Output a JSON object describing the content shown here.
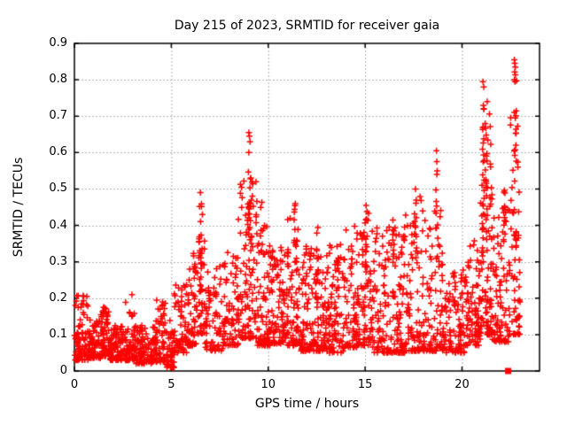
{
  "window": {
    "background": "#ffffff"
  },
  "chart_data": {
    "type": "scatter",
    "title": "Day 215 of 2023, SRMTID for receiver gaia",
    "xlabel": "GPS time / hours",
    "ylabel": "SRMTID / TECUs",
    "xlim": [
      0,
      24
    ],
    "ylim": [
      0,
      0.9
    ],
    "xticks": [
      0,
      5,
      10,
      15,
      20
    ],
    "xtick_labels": [
      "0",
      "5",
      "10",
      "15",
      "20"
    ],
    "yticks": [
      0,
      0.1,
      0.2,
      0.3,
      0.4,
      0.5,
      0.6,
      0.7,
      0.8,
      0.9
    ],
    "ytick_labels": [
      "0",
      "0.1",
      "0.2",
      "0.3",
      "0.4",
      "0.5",
      "0.6",
      "0.7",
      "0.8",
      "0.9"
    ],
    "grid": true,
    "grid_style": "dashed",
    "legend": "none",
    "marker": {
      "shape": "plus",
      "color": "#ff0000",
      "size": 7
    },
    "colors": {
      "marker": "#ff0000",
      "grid": "#b0b0b0",
      "border": "#000000",
      "text": "#000000"
    },
    "seed": 20230215,
    "band_format": [
      "x0_hours",
      "x1_hours",
      "y_min",
      "y_max",
      "n_points",
      "bias_toward_min"
    ],
    "bands": [
      [
        0.0,
        0.7,
        0.03,
        0.21,
        85,
        2.0
      ],
      [
        0.7,
        1.35,
        0.035,
        0.14,
        75,
        1.7
      ],
      [
        1.35,
        1.85,
        0.04,
        0.175,
        65,
        1.9
      ],
      [
        1.85,
        2.6,
        0.03,
        0.125,
        85,
        1.7
      ],
      [
        2.6,
        3.15,
        0.03,
        0.19,
        65,
        2.4
      ],
      [
        3.15,
        4.2,
        0.02,
        0.125,
        100,
        1.7
      ],
      [
        4.2,
        4.75,
        0.025,
        0.195,
        55,
        2.0
      ],
      [
        4.75,
        5.15,
        0.01,
        0.16,
        45,
        1.9
      ],
      [
        5.15,
        5.8,
        0.05,
        0.24,
        55,
        1.7
      ],
      [
        5.8,
        6.35,
        0.07,
        0.33,
        55,
        1.9
      ],
      [
        6.35,
        6.75,
        0.1,
        0.47,
        40,
        1.8
      ],
      [
        6.75,
        7.65,
        0.055,
        0.29,
        70,
        1.8
      ],
      [
        7.65,
        8.45,
        0.07,
        0.33,
        70,
        1.8
      ],
      [
        8.45,
        9.45,
        0.09,
        0.55,
        105,
        2.0
      ],
      [
        9.45,
        10.15,
        0.07,
        0.4,
        80,
        2.0
      ],
      [
        10.15,
        10.95,
        0.075,
        0.34,
        85,
        1.9
      ],
      [
        10.95,
        11.65,
        0.07,
        0.42,
        75,
        2.0
      ],
      [
        11.65,
        12.45,
        0.055,
        0.37,
        85,
        1.9
      ],
      [
        12.45,
        13.15,
        0.055,
        0.33,
        75,
        1.8
      ],
      [
        13.15,
        13.95,
        0.05,
        0.35,
        75,
        1.9
      ],
      [
        13.95,
        14.85,
        0.065,
        0.4,
        80,
        1.9
      ],
      [
        14.85,
        15.35,
        0.07,
        0.45,
        50,
        2.0
      ],
      [
        15.35,
        16.25,
        0.05,
        0.4,
        80,
        1.9
      ],
      [
        16.25,
        17.25,
        0.05,
        0.4,
        90,
        2.0
      ],
      [
        17.25,
        18.15,
        0.055,
        0.48,
        80,
        2.1
      ],
      [
        18.15,
        19.05,
        0.055,
        0.45,
        80,
        2.0
      ],
      [
        19.05,
        20.25,
        0.05,
        0.28,
        105,
        1.8
      ],
      [
        20.25,
        20.95,
        0.07,
        0.36,
        75,
        1.8
      ],
      [
        20.95,
        21.55,
        0.1,
        0.72,
        85,
        2.2
      ],
      [
        21.55,
        22.45,
        0.08,
        0.46,
        85,
        2.0
      ],
      [
        22.45,
        23.0,
        0.1,
        0.8,
        60,
        2.2
      ]
    ],
    "spike_format": [
      "x_hours",
      "y_min",
      "y_max",
      "n_points"
    ],
    "spikes": [
      [
        6.5,
        0.12,
        0.49,
        14
      ],
      [
        9.0,
        0.4,
        0.66,
        10
      ],
      [
        9.1,
        0.35,
        0.6,
        8
      ],
      [
        9.65,
        0.28,
        0.47,
        8
      ],
      [
        11.4,
        0.28,
        0.46,
        10
      ],
      [
        12.55,
        0.25,
        0.42,
        8
      ],
      [
        13.6,
        0.22,
        0.36,
        8
      ],
      [
        15.05,
        0.28,
        0.46,
        10
      ],
      [
        16.45,
        0.25,
        0.42,
        8
      ],
      [
        17.05,
        0.25,
        0.43,
        8
      ],
      [
        17.6,
        0.28,
        0.5,
        9
      ],
      [
        18.7,
        0.35,
        0.61,
        9
      ],
      [
        21.1,
        0.3,
        0.78,
        22
      ],
      [
        21.25,
        0.35,
        0.7,
        14
      ],
      [
        22.2,
        0.25,
        0.52,
        12
      ],
      [
        22.75,
        0.3,
        0.86,
        18
      ]
    ],
    "notable_points": [
      [
        0.64,
        0.205
      ],
      [
        1.5,
        0.175
      ],
      [
        2.97,
        0.21
      ],
      [
        4.55,
        0.19
      ],
      [
        6.5,
        0.49
      ],
      [
        9.0,
        0.655
      ],
      [
        9.03,
        0.645
      ],
      [
        9.06,
        0.63
      ],
      [
        9.0,
        0.6
      ],
      [
        9.1,
        0.53
      ],
      [
        11.4,
        0.46
      ],
      [
        15.05,
        0.455
      ],
      [
        17.6,
        0.5
      ],
      [
        18.68,
        0.605
      ],
      [
        18.7,
        0.575
      ],
      [
        18.72,
        0.55
      ],
      [
        21.08,
        0.795
      ],
      [
        21.12,
        0.78
      ],
      [
        21.3,
        0.74
      ],
      [
        21.1,
        0.73
      ],
      [
        22.7,
        0.855
      ],
      [
        22.72,
        0.845
      ],
      [
        22.75,
        0.835
      ],
      [
        22.7,
        0.8
      ],
      [
        22.73,
        0.795
      ],
      [
        22.7,
        0.71
      ],
      [
        22.75,
        0.695
      ],
      [
        22.78,
        0.62
      ]
    ],
    "special_points": [
      {
        "x": 22.38,
        "y": 0,
        "shape": "filled-square",
        "color": "#ff0000",
        "size": 7
      }
    ]
  }
}
